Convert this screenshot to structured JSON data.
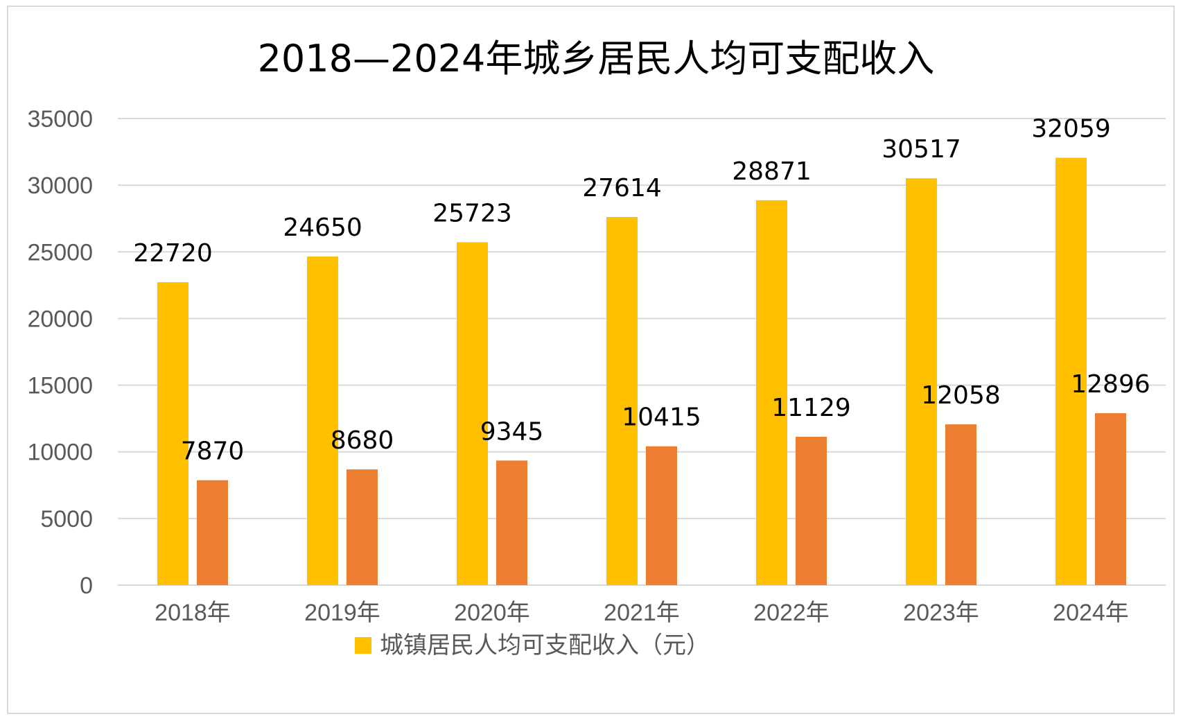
{
  "chart_data": {
    "type": "bar",
    "title": "2018—2024年城乡居民人均可支配收入",
    "categories": [
      "2018年",
      "2019年",
      "2020年",
      "2021年",
      "2022年",
      "2023年",
      "2024年"
    ],
    "series": [
      {
        "name": "城镇居民人均可支配收入（元）",
        "color": "#FFC000",
        "values": [
          22720,
          24650,
          25723,
          27614,
          28871,
          30517,
          32059
        ]
      },
      {
        "color": "#ED7D31",
        "values": [
          7870,
          8680,
          9345,
          10415,
          11129,
          12058,
          12896
        ]
      }
    ],
    "ylim": [
      0,
      35000
    ],
    "yticks": [
      0,
      5000,
      10000,
      15000,
      20000,
      25000,
      30000,
      35000
    ],
    "xlabel": "",
    "ylabel": "",
    "grid": true,
    "legend_position": "bottom",
    "data_labels": true
  }
}
